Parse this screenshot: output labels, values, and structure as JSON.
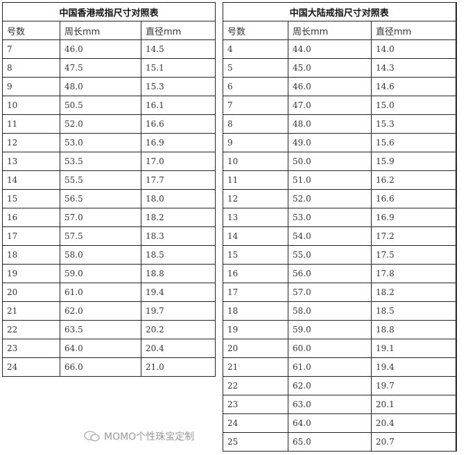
{
  "tables": [
    {
      "title": "中国香港戒指尺寸对照表",
      "headers": [
        "号数",
        "周长mm",
        "直径mm"
      ],
      "rows": [
        [
          "7",
          "46.0",
          "14.5"
        ],
        [
          "8",
          "47.5",
          "15.1"
        ],
        [
          "9",
          "48.0",
          "15.3"
        ],
        [
          "10",
          "50.5",
          "16.1"
        ],
        [
          "11",
          "52.0",
          "16.6"
        ],
        [
          "12",
          "53.0",
          "16.9"
        ],
        [
          "13",
          "53.5",
          "17.0"
        ],
        [
          "14",
          "55.5",
          "17.7"
        ],
        [
          "15",
          "56.5",
          "18.0"
        ],
        [
          "16",
          "57.0",
          "18.2"
        ],
        [
          "17",
          "57.5",
          "18.3"
        ],
        [
          "18",
          "58.0",
          "18.5"
        ],
        [
          "19",
          "59.0",
          "18.8"
        ],
        [
          "20",
          "61.0",
          "19.4"
        ],
        [
          "21",
          "62.0",
          "19.7"
        ],
        [
          "22",
          "63.5",
          "20.2"
        ],
        [
          "23",
          "64.0",
          "20.4"
        ],
        [
          "24",
          "66.0",
          "21.0"
        ]
      ]
    },
    {
      "title": "中国大陆戒指尺寸对照表",
      "headers": [
        "号数",
        "周长mm",
        "直径mm"
      ],
      "rows": [
        [
          "4",
          "44.0",
          "14.0"
        ],
        [
          "5",
          "45.0",
          "14.3"
        ],
        [
          "6",
          "46.0",
          "14.6"
        ],
        [
          "7",
          "47.0",
          "15.0"
        ],
        [
          "8",
          "48.0",
          "15.3"
        ],
        [
          "9",
          "49.0",
          "15.6"
        ],
        [
          "10",
          "50.0",
          "15.9"
        ],
        [
          "11",
          "51.0",
          "16.2"
        ],
        [
          "12",
          "52.0",
          "16.6"
        ],
        [
          "13",
          "53.0",
          "16.9"
        ],
        [
          "14",
          "54.0",
          "17.2"
        ],
        [
          "15",
          "55.0",
          "17.5"
        ],
        [
          "16",
          "56.0",
          "17.8"
        ],
        [
          "17",
          "57.0",
          "18.2"
        ],
        [
          "18",
          "58.0",
          "18.5"
        ],
        [
          "19",
          "59.0",
          "18.8"
        ],
        [
          "20",
          "60.0",
          "19.1"
        ],
        [
          "21",
          "61.0",
          "19.4"
        ],
        [
          "22",
          "62.0",
          "19.7"
        ],
        [
          "23",
          "63.0",
          "20.1"
        ],
        [
          "24",
          "64.0",
          "20.4"
        ],
        [
          "25",
          "65.0",
          "20.7"
        ]
      ]
    }
  ],
  "watermark": {
    "text": "MOMO个性珠宝定制",
    "icon": "wechat-icon"
  }
}
